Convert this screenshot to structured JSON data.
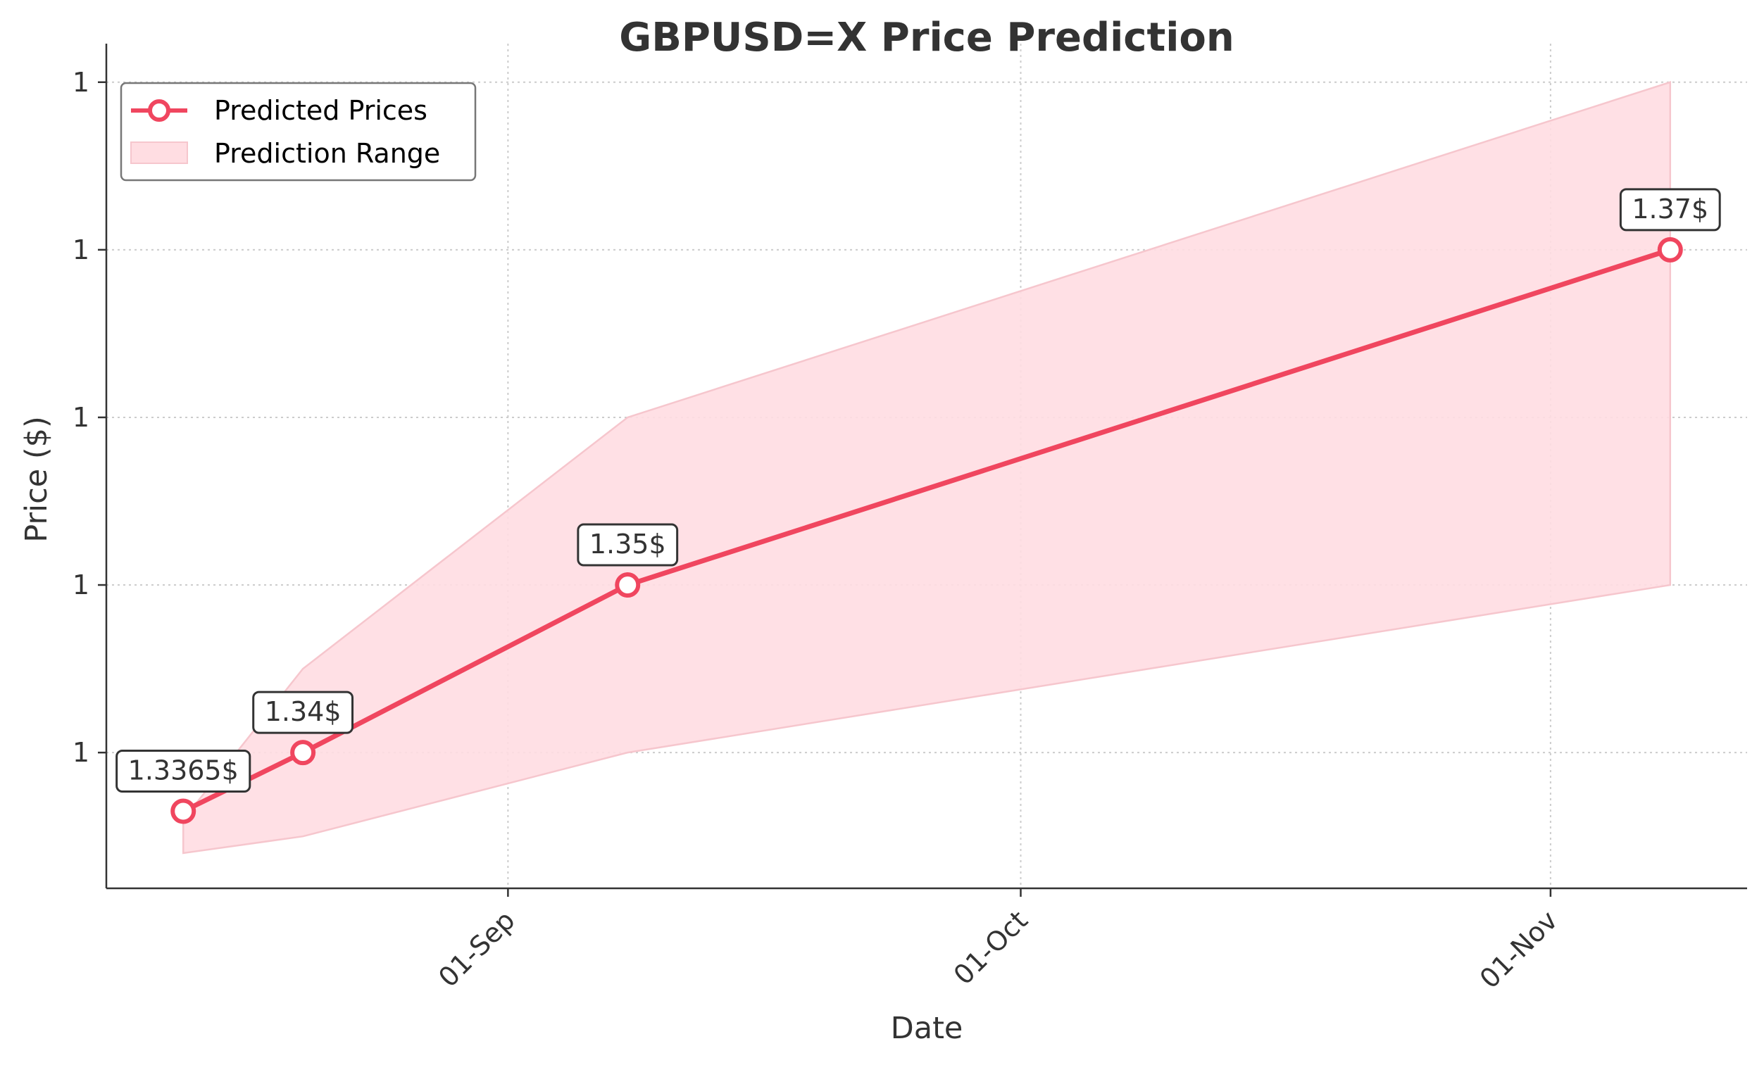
{
  "chart_data": {
    "type": "line",
    "title": "GBPUSD=X Price Prediction",
    "xlabel": "Date",
    "ylabel": "Price ($)",
    "x_dates": [
      "2025-08-13",
      "2025-08-20",
      "2025-09-08",
      "2025-11-08"
    ],
    "x_tick_dates": [
      "2025-09-01",
      "2025-10-01",
      "2025-11-01"
    ],
    "x_tick_labels": [
      "01-Sep",
      "01-Oct",
      "01-Nov"
    ],
    "xlim": [
      "2025-08-08.5",
      "2025-11-12.5"
    ],
    "y_tick_values": [
      1.34,
      1.35,
      1.36,
      1.37,
      1.38
    ],
    "y_tick_labels": [
      "1",
      "1",
      "1",
      "1",
      "1"
    ],
    "ylim": [
      1.3319,
      1.3823
    ],
    "grid": true,
    "legend_position": "top-left",
    "series": [
      {
        "name": "Predicted Prices",
        "kind": "line-marker",
        "color": "#f0465f",
        "values": [
          1.3365,
          1.34,
          1.35,
          1.37
        ]
      },
      {
        "name": "Prediction Range",
        "kind": "band",
        "color": "#ffdde2",
        "lower": [
          1.334,
          1.335,
          1.34,
          1.35
        ],
        "upper": [
          1.336,
          1.345,
          1.36,
          1.38
        ]
      }
    ],
    "annotations": [
      "1.3365$",
      "1.34$",
      "1.35$",
      "1.37$"
    ]
  }
}
